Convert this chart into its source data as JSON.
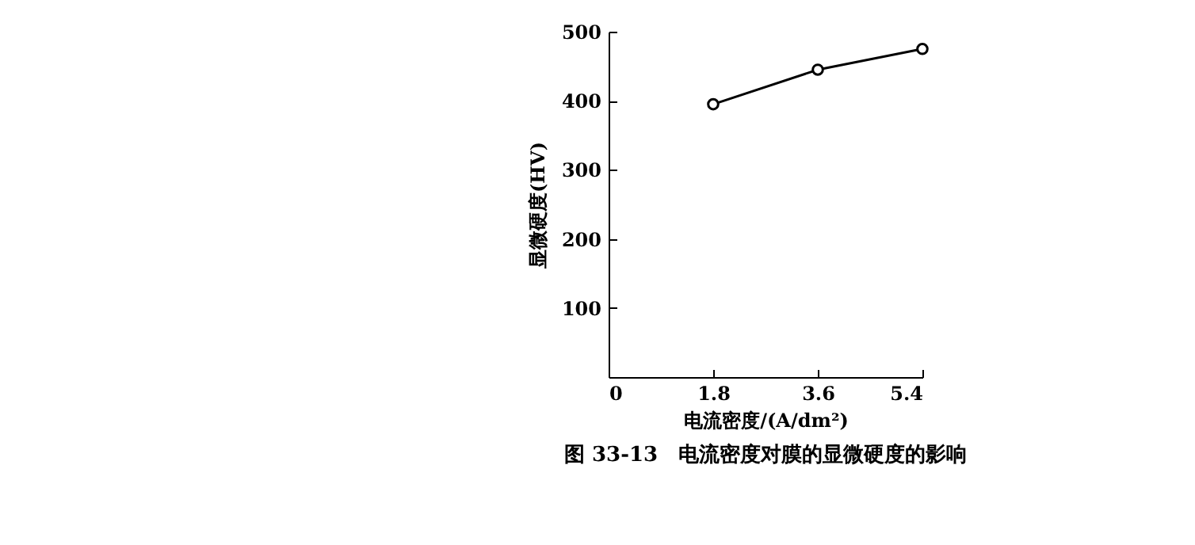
{
  "chart_data": {
    "type": "line",
    "title": "图 33-13　电流密度对膜的显微硬度的影响",
    "xlabel": "电流密度/(A/dm²)",
    "ylabel": "显微硬度(HV)",
    "x": [
      1.8,
      3.6,
      5.4
    ],
    "series": [
      {
        "color": "#000000",
        "values": [
          395,
          445,
          475
        ]
      }
    ],
    "xlim": [
      0,
      5.4
    ],
    "xticks": [
      0,
      1.8,
      3.6,
      5.4
    ],
    "ylim": [
      0,
      500
    ],
    "yticks": [
      100,
      200,
      300,
      400,
      500
    ],
    "marker": "circle",
    "line_style": "solid"
  }
}
